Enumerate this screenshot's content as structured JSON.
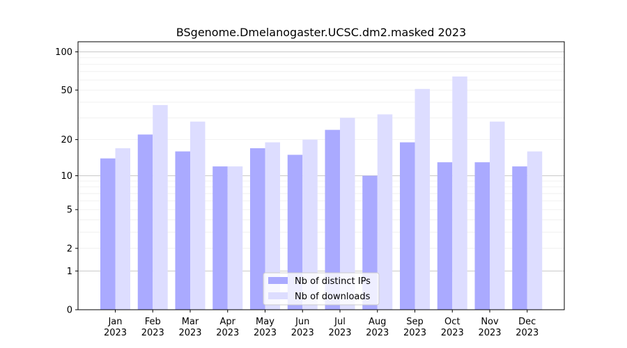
{
  "chart_data": {
    "type": "bar",
    "title": "BSgenome.Dmelanogaster.UCSC.dm2.masked 2023",
    "xlabel": "",
    "ylabel": "",
    "scale": "log1p",
    "categories": [
      [
        "Jan",
        "2023"
      ],
      [
        "Feb",
        "2023"
      ],
      [
        "Mar",
        "2023"
      ],
      [
        "Apr",
        "2023"
      ],
      [
        "May",
        "2023"
      ],
      [
        "Jun",
        "2023"
      ],
      [
        "Jul",
        "2023"
      ],
      [
        "Aug",
        "2023"
      ],
      [
        "Sep",
        "2023"
      ],
      [
        "Oct",
        "2023"
      ],
      [
        "Nov",
        "2023"
      ],
      [
        "Dec",
        "2023"
      ]
    ],
    "series": [
      {
        "name": "Nb of distinct IPs",
        "color": "#aaaaff",
        "values": [
          14,
          22,
          16,
          12,
          17,
          15,
          24,
          10,
          19,
          13,
          13,
          12
        ]
      },
      {
        "name": "Nb of downloads",
        "color": "#ddddff",
        "values": [
          17,
          38,
          28,
          12,
          19,
          20,
          30,
          32,
          51,
          64,
          28,
          16
        ]
      }
    ],
    "yticks": [
      0,
      1,
      2,
      5,
      10,
      20,
      50,
      100
    ],
    "ylim": [
      0,
      120
    ],
    "grid": true,
    "legend_position": "bottom-center"
  }
}
